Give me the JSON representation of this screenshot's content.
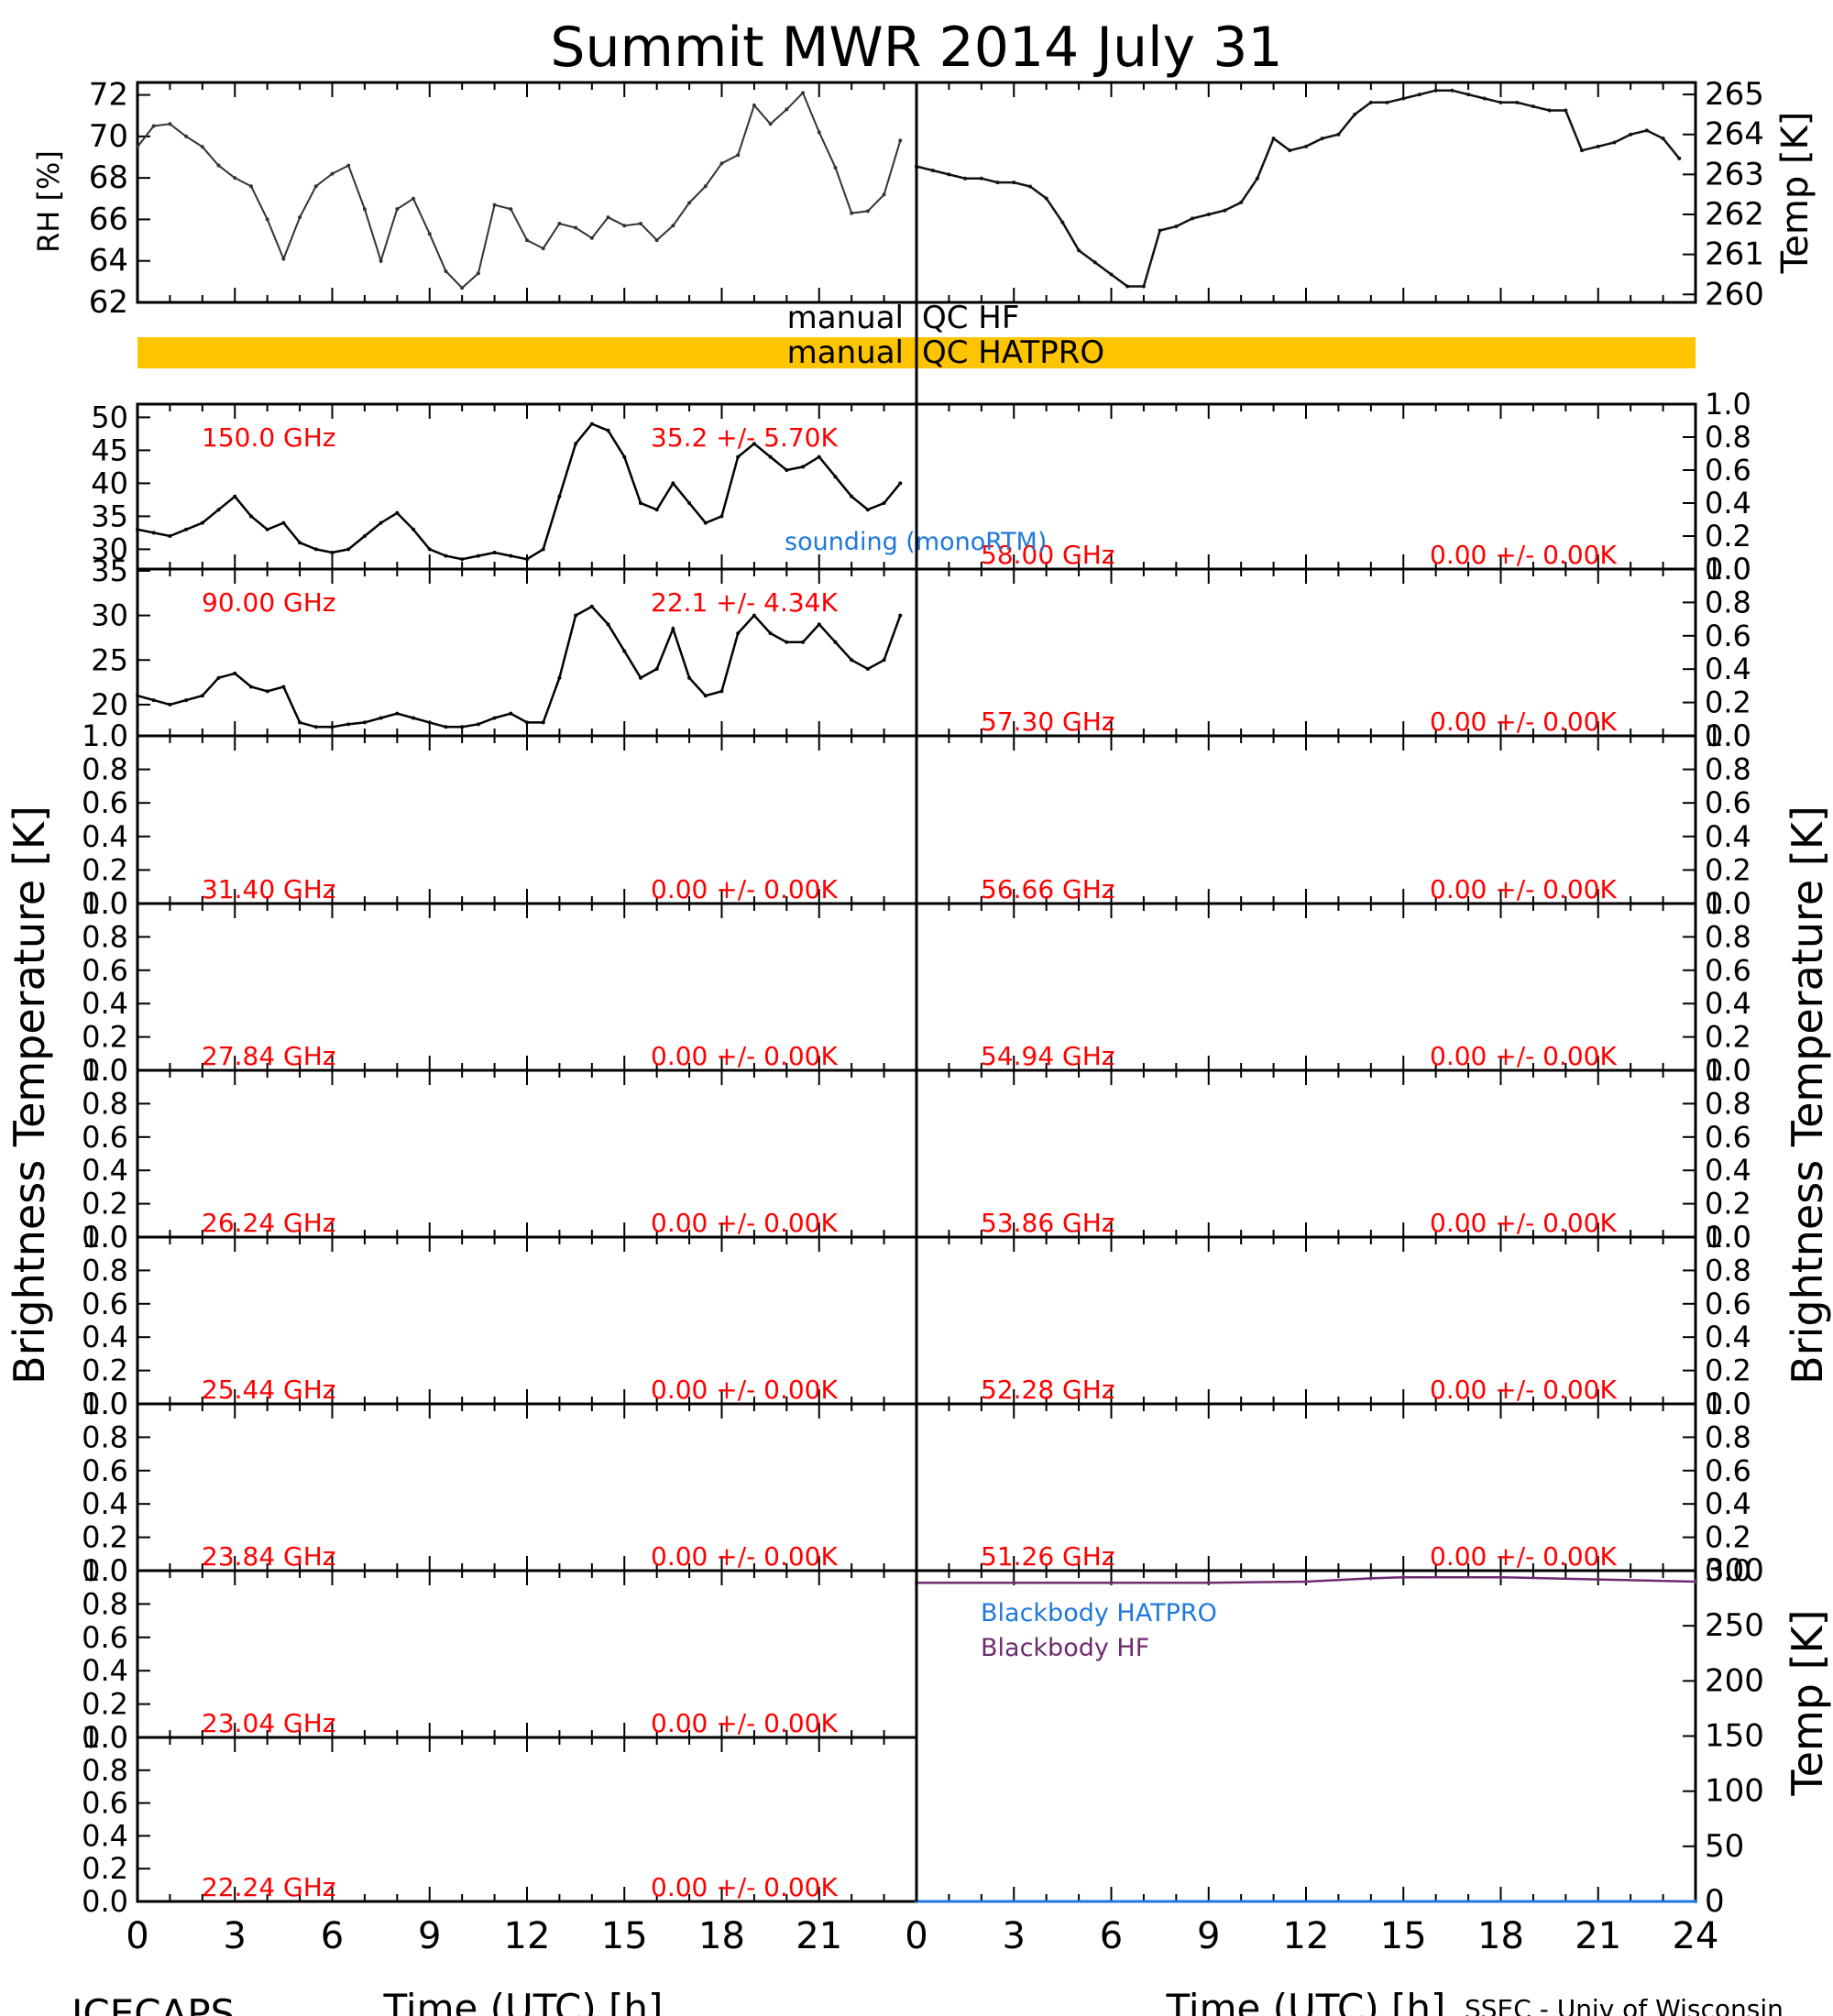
{
  "title": "Summit MWR 2014 July 31",
  "footer": {
    "left": "ICECAPS",
    "right": "SSEC - Univ of Wisconsin"
  },
  "colors": {
    "annotation": "#ff0000",
    "hatpro": "#1e78dc",
    "hf": "#6e2c6e",
    "qc_bar": "#ffc400",
    "trace": "#000000"
  },
  "qc": {
    "row1_left": "manual",
    "row1_right": "QC HF",
    "row2_left": "manual",
    "row2_right": "QC HATPRO"
  },
  "time_axis": {
    "label": "Time (UTC) [h]",
    "ticks_left": [
      "0",
      "3",
      "6",
      "9",
      "12",
      "15",
      "18",
      "21"
    ],
    "ticks_right": [
      "0",
      "3",
      "6",
      "9",
      "12",
      "15",
      "18",
      "21",
      "24"
    ]
  },
  "axis_titles": {
    "rh": "RH [%]",
    "temp": "Temp [K]",
    "brightness": "Brightness Temperature [K]",
    "bb_temp": "Temp [K]"
  },
  "unit_ticks": [
    "0.0",
    "0.2",
    "0.4",
    "0.6",
    "0.8",
    "1.0"
  ],
  "sounding_label": "sounding (monoRTM)",
  "chart_data": {
    "type": "line",
    "x_range": [
      0,
      24
    ],
    "x_unit": "h",
    "panels": [
      {
        "id": "rh",
        "ylabel": "RH [%]",
        "ylim": [
          62,
          72.6
        ],
        "ticks": [
          "62",
          "64",
          "66",
          "68",
          "70",
          "72"
        ],
        "x": [
          0,
          0.5,
          1,
          1.5,
          2,
          2.5,
          3,
          3.5,
          4,
          4.5,
          5,
          5.5,
          6,
          6.5,
          7,
          7.5,
          8,
          8.5,
          9,
          9.5,
          10,
          10.5,
          11,
          11.5,
          12,
          12.5,
          13,
          13.5,
          14,
          14.5,
          15,
          15.5,
          16,
          16.5,
          17,
          17.5,
          18,
          18.5,
          19,
          19.5,
          20,
          20.5,
          21,
          21.5,
          22,
          22.5,
          23,
          23.5
        ],
        "values": [
          69.5,
          70.5,
          70.6,
          70,
          69.5,
          68.6,
          68,
          67.6,
          66,
          64.1,
          66.1,
          67.6,
          68.2,
          68.6,
          66.5,
          64,
          66.5,
          67,
          65.3,
          63.5,
          62.7,
          63.4,
          66.7,
          66.5,
          65,
          64.6,
          65.8,
          65.6,
          65.1,
          66.1,
          65.7,
          65.8,
          65,
          65.7,
          66.8,
          67.6,
          68.7,
          69.1,
          71.5,
          70.6,
          71.3,
          72.1,
          70.2,
          68.5,
          66.3,
          66.4,
          67.2,
          69.8
        ]
      },
      {
        "id": "temp",
        "ylabel": "Temp [K]",
        "ylim": [
          259.8,
          265.3
        ],
        "ticks": [
          "260",
          "261",
          "262",
          "263",
          "264",
          "265"
        ],
        "x": [
          0,
          0.5,
          1,
          1.5,
          2,
          2.5,
          3,
          3.5,
          4,
          4.5,
          5,
          5.5,
          6,
          6.5,
          7,
          7.5,
          8,
          8.5,
          9,
          9.5,
          10,
          10.5,
          11,
          11.5,
          12,
          12.5,
          13,
          13.5,
          14,
          14.5,
          15,
          15.5,
          16,
          16.5,
          17,
          17.5,
          18,
          18.5,
          19,
          19.5,
          20,
          20.5,
          21,
          21.5,
          22,
          22.5,
          23,
          23.5
        ],
        "values": [
          263.2,
          263.1,
          263,
          262.9,
          262.9,
          262.8,
          262.8,
          262.7,
          262.4,
          261.8,
          261.1,
          260.8,
          260.5,
          260.2,
          260.2,
          261.6,
          261.7,
          261.9,
          262,
          262.1,
          262.3,
          262.9,
          263.9,
          263.6,
          263.7,
          263.9,
          264,
          264.5,
          264.8,
          264.8,
          264.9,
          265,
          265.1,
          265.1,
          265,
          264.9,
          264.8,
          264.8,
          264.7,
          264.6,
          264.6,
          263.6,
          263.7,
          263.8,
          264,
          264.1,
          263.9,
          263.4
        ]
      },
      {
        "id": "bt-150",
        "freq": "150.0 GHz",
        "stat": "35.2 +/- 5.70K",
        "ylim": [
          27,
          52
        ],
        "ticks": [
          "30",
          "35",
          "40",
          "45",
          "50"
        ],
        "x": [
          0,
          0.5,
          1,
          1.5,
          2,
          2.5,
          3,
          3.5,
          4,
          4.5,
          5,
          5.5,
          6,
          6.5,
          7,
          7.5,
          8,
          8.5,
          9,
          9.5,
          10,
          10.5,
          11,
          11.5,
          12,
          12.5,
          13,
          13.5,
          14,
          14.5,
          15,
          15.5,
          16,
          16.5,
          17,
          17.5,
          18,
          18.5,
          19,
          19.5,
          20,
          20.5,
          21,
          21.5,
          22,
          22.5,
          23,
          23.5
        ],
        "values": [
          33,
          32.5,
          32,
          33,
          34,
          36,
          38,
          35,
          33,
          34,
          31,
          30,
          29.5,
          30,
          32,
          34,
          35.5,
          33,
          30,
          29,
          28.5,
          29,
          29.5,
          29,
          28.5,
          30,
          38,
          46,
          49,
          48,
          44,
          37,
          36,
          40,
          37,
          34,
          35,
          44,
          46,
          44,
          42,
          42.5,
          44,
          41,
          38,
          36,
          37,
          40
        ]
      },
      {
        "id": "bt-90",
        "freq": "90.00 GHz",
        "stat": "22.1 +/- 4.34K",
        "ylim": [
          16.5,
          35.2
        ],
        "ticks": [
          "20",
          "25",
          "30",
          "35"
        ],
        "x": [
          0,
          0.5,
          1,
          1.5,
          2,
          2.5,
          3,
          3.5,
          4,
          4.5,
          5,
          5.5,
          6,
          6.5,
          7,
          7.5,
          8,
          8.5,
          9,
          9.5,
          10,
          10.5,
          11,
          11.5,
          12,
          12.5,
          13,
          13.5,
          14,
          14.5,
          15,
          15.5,
          16,
          16.5,
          17,
          17.5,
          18,
          18.5,
          19,
          19.5,
          20,
          20.5,
          21,
          21.5,
          22,
          22.5,
          23,
          23.5
        ],
        "values": [
          21,
          20.5,
          20,
          20.5,
          21,
          23,
          23.5,
          22,
          21.5,
          22,
          18,
          17.5,
          17.5,
          17.8,
          18,
          18.5,
          19,
          18.5,
          18,
          17.5,
          17.5,
          17.8,
          18.5,
          19,
          18,
          18,
          23,
          30,
          31,
          29,
          26,
          23,
          24,
          28.5,
          23,
          21,
          21.5,
          28,
          30,
          28,
          27,
          27,
          29,
          27,
          25,
          24,
          25,
          30
        ]
      }
    ],
    "empty_left": [
      {
        "freq": "31.40 GHz",
        "stat": "0.00 +/- 0.00K"
      },
      {
        "freq": "27.84 GHz",
        "stat": "0.00 +/- 0.00K"
      },
      {
        "freq": "26.24 GHz",
        "stat": "0.00 +/- 0.00K"
      },
      {
        "freq": "25.44 GHz",
        "stat": "0.00 +/- 0.00K"
      },
      {
        "freq": "23.84 GHz",
        "stat": "0.00 +/- 0.00K"
      },
      {
        "freq": "23.04 GHz",
        "stat": "0.00 +/- 0.00K"
      },
      {
        "freq": "22.24 GHz",
        "stat": "0.00 +/- 0.00K"
      }
    ],
    "empty_right": [
      {
        "freq": "58.00 GHz",
        "stat": "0.00 +/- 0.00K"
      },
      {
        "freq": "57.30 GHz",
        "stat": "0.00 +/- 0.00K"
      },
      {
        "freq": "56.66 GHz",
        "stat": "0.00 +/- 0.00K"
      },
      {
        "freq": "54.94 GHz",
        "stat": "0.00 +/- 0.00K"
      },
      {
        "freq": "53.86 GHz",
        "stat": "0.00 +/- 0.00K"
      },
      {
        "freq": "52.28 GHz",
        "stat": "0.00 +/- 0.00K"
      },
      {
        "freq": "51.26 GHz",
        "stat": "0.00 +/- 0.00K"
      }
    ],
    "blackbody": {
      "ylabel": "Temp [K]",
      "ylim": [
        0,
        300
      ],
      "ticks": [
        "0",
        "50",
        "100",
        "150",
        "200",
        "250",
        "300"
      ],
      "legend": {
        "hatpro": "Blackbody HATPRO",
        "hf": "Blackbody HF"
      },
      "hf": {
        "x": [
          0,
          3,
          6,
          9,
          12,
          14,
          15,
          18,
          21,
          24
        ],
        "values": [
          289,
          289,
          289,
          289,
          290,
          293,
          294,
          294,
          292,
          290
        ]
      },
      "hatpro": {
        "x": [
          0,
          24
        ],
        "values": [
          0,
          0
        ]
      }
    }
  }
}
